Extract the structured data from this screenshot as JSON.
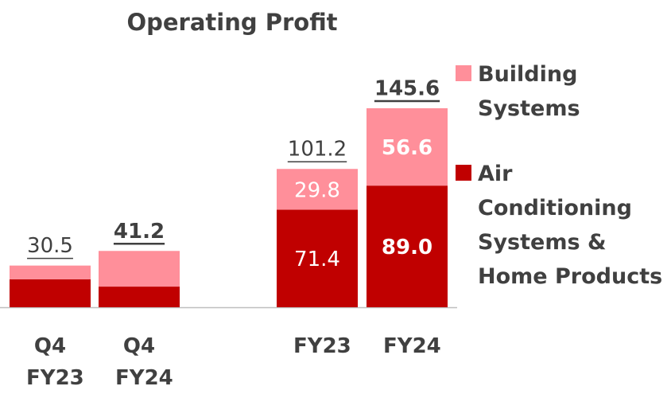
{
  "chart_data": {
    "type": "stacked_bar",
    "title": "Operating Profit",
    "categories": [
      "Q4 FY23",
      "Q4 FY24",
      "FY23",
      "FY24"
    ],
    "series": [
      {
        "name": "Air Conditioning Systems & Home Products",
        "color": "#c00000",
        "values": [
          20.4,
          15.1,
          71.4,
          89.0
        ],
        "value_labels": [
          null,
          null,
          "71.4",
          "89.0"
        ]
      },
      {
        "name": "Building Systems",
        "color": "#ff8f9a",
        "values": [
          10.1,
          26.1,
          29.8,
          56.6
        ],
        "value_labels": [
          null,
          null,
          "29.8",
          "56.6"
        ]
      }
    ],
    "totals": [
      30.5,
      41.2,
      101.2,
      145.6
    ],
    "ylim": [
      0,
      145.6
    ]
  }
}
